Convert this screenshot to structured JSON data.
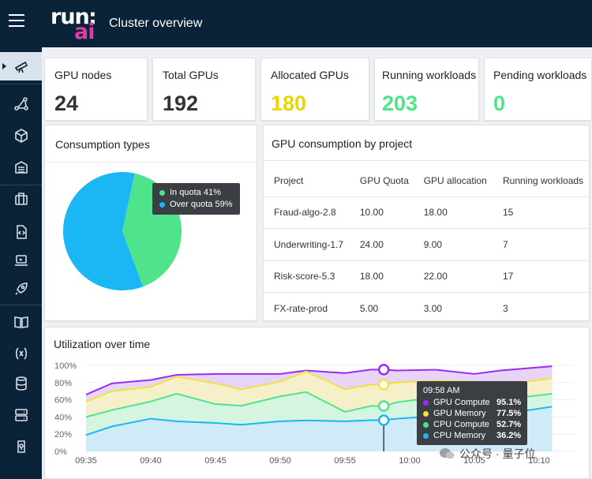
{
  "header": {
    "title": "Cluster overview",
    "logo_top": "run",
    "logo_colon": ":",
    "logo_bottom": "ai"
  },
  "sidebar": {
    "items": [
      {
        "name": "telescope-icon",
        "active": true
      },
      {
        "name": "nodes-icon"
      },
      {
        "name": "cube-icon"
      },
      {
        "name": "datacenter-icon"
      },
      {
        "name": "briefcase-icon"
      },
      {
        "name": "code-file-icon"
      },
      {
        "name": "laptop-icon"
      },
      {
        "name": "rocket-icon"
      },
      {
        "name": "book-icon"
      },
      {
        "name": "variable-icon"
      },
      {
        "name": "database-icon"
      },
      {
        "name": "server-icon"
      },
      {
        "name": "credential-icon"
      }
    ]
  },
  "stats": [
    {
      "label": "GPU nodes",
      "value": "24",
      "color": "#333333"
    },
    {
      "label": "Total GPUs",
      "value": "192",
      "color": "#333333"
    },
    {
      "label": "Allocated GPUs",
      "value": "180",
      "color": "#e9d800"
    },
    {
      "label": "Running workloads",
      "value": "203",
      "color": "#4ee58a"
    },
    {
      "label": "Pending workloads",
      "value": "0",
      "color": "#4ee58a"
    }
  ],
  "consumption": {
    "title": "Consumption types",
    "chart_data": {
      "type": "pie",
      "slices": [
        {
          "label": "In quota",
          "value": 41,
          "display": "41%",
          "color": "#4fe38c"
        },
        {
          "label": "Over quota",
          "value": 59,
          "display": "59%",
          "color": "#1bb7f5"
        }
      ]
    }
  },
  "project_table": {
    "title": "GPU consumption by project",
    "columns": [
      "Project",
      "GPU Quota",
      "GPU allocation",
      "Running workloads"
    ],
    "rows": [
      [
        "Fraud-algo-2.8",
        "10.00",
        "18.00",
        "15"
      ],
      [
        "Underwriting-1.7",
        "24.00",
        "9.00",
        "7"
      ],
      [
        "Risk-score-5.3",
        "18.00",
        "22.00",
        "17"
      ],
      [
        "FX-rate-prod",
        "5.00",
        "3.00",
        "3"
      ]
    ]
  },
  "utilization": {
    "title": "Utilization over time",
    "chart_data": {
      "type": "area",
      "ylim": [
        0,
        100
      ],
      "y_ticks": [
        "0%",
        "20%",
        "40%",
        "60%",
        "80%",
        "100%"
      ],
      "x_ticks": [
        "09:35",
        "09:40",
        "09:45",
        "09:50",
        "09:55",
        "10:00",
        "10:05",
        "10:10"
      ],
      "x": [
        "09:35",
        "09:37",
        "09:40",
        "09:42",
        "09:45",
        "09:47",
        "09:50",
        "09:52",
        "09:55",
        "09:57",
        "09:58",
        "09:59",
        "10:02",
        "10:05",
        "10:07",
        "10:11"
      ],
      "series": [
        {
          "name": "GPU Compute",
          "color": "#9b2df2",
          "fill": "#e6d2f7",
          "values": [
            66,
            79,
            83,
            89,
            90,
            90,
            90,
            94,
            91,
            95.1,
            95.1,
            94,
            95,
            90,
            94,
            99
          ]
        },
        {
          "name": "GPU Memory",
          "color": "#f0e43a",
          "fill": "#f6f1c7",
          "values": [
            58,
            70,
            75,
            87,
            79,
            72,
            81,
            93,
            72,
            77.5,
            77.5,
            80,
            82,
            81,
            77,
            85
          ]
        },
        {
          "name": "CPU Compute",
          "color": "#4fe38c",
          "fill": "#d4f4e1",
          "values": [
            40,
            48,
            58,
            67,
            55,
            53,
            64,
            69,
            46,
            52.7,
            52.7,
            57,
            63,
            61,
            60,
            67
          ]
        },
        {
          "name": "CPU Memory",
          "color": "#1bb7f5",
          "fill": "#cfeaf8",
          "values": [
            19,
            29,
            38,
            35,
            33,
            31,
            35,
            36,
            35,
            36.2,
            36.2,
            38,
            41,
            40,
            43,
            52
          ]
        }
      ],
      "tooltip": {
        "time": "09:58 AM",
        "rows": [
          {
            "name": "GPU Compute",
            "value": "95.1%"
          },
          {
            "name": "GPU Memory",
            "value": "77.5%"
          },
          {
            "name": "CPU Compute",
            "value": "52.7%"
          },
          {
            "name": "CPU Memory",
            "value": "36.2%"
          }
        ]
      }
    }
  },
  "watermark": {
    "text": "公众号 · 量子位"
  }
}
